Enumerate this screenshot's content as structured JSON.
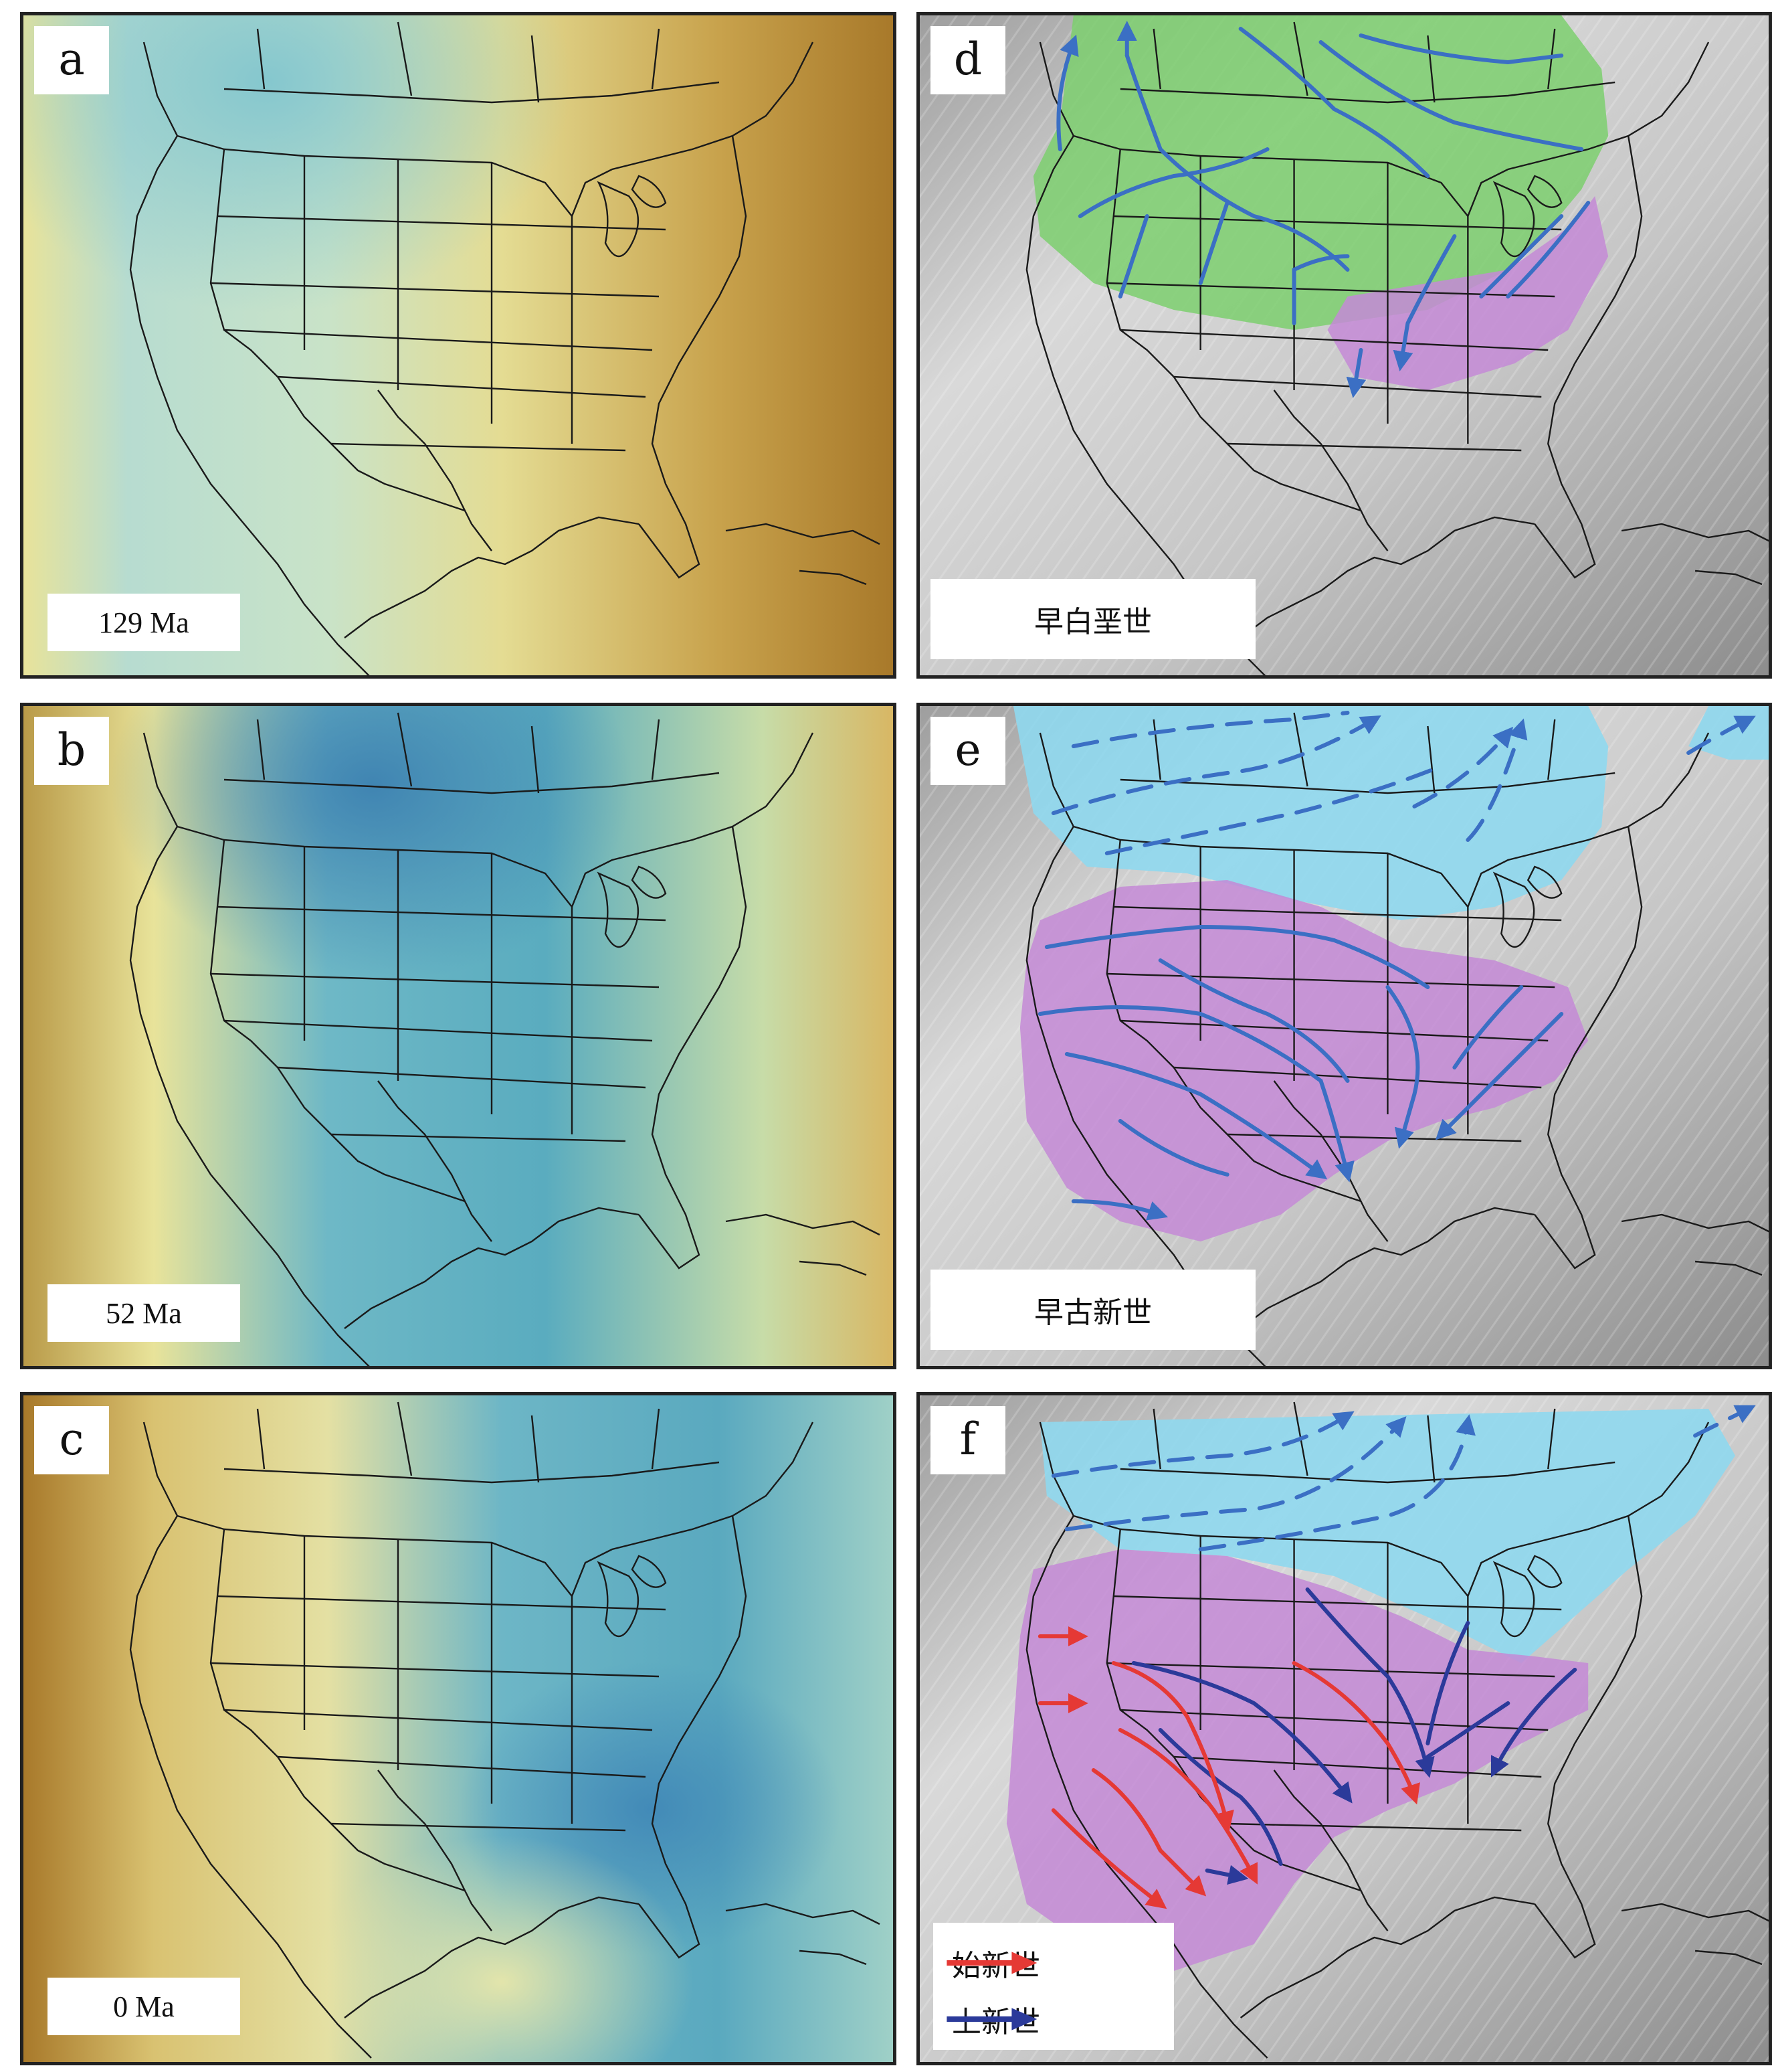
{
  "panels": {
    "a": {
      "letter": "a",
      "age": "129 Ma"
    },
    "b": {
      "letter": "b",
      "age": "52 Ma"
    },
    "c": {
      "letter": "c",
      "age": "0 Ma"
    },
    "d": {
      "letter": "d",
      "epoch": "早白垩世"
    },
    "e": {
      "letter": "e",
      "epoch": "早古新世"
    },
    "f": {
      "letter": "f"
    }
  },
  "legend": {
    "items": [
      {
        "label": "始新世",
        "color": "#e53935"
      },
      {
        "label": "上新世",
        "color": "#2b3a9a"
      }
    ]
  },
  "colors": {
    "dynamic_high": "#a8792a",
    "dynamic_mid": "#e9e49a",
    "dynamic_low": "#3f9bb0",
    "drainage_green": "#7ccf6f",
    "drainage_purple": "#c48ad6",
    "drainage_cyan": "#8fd8ee",
    "river_blue": "#3b6fc4",
    "river_dark_blue": "#2b3a9a",
    "river_red": "#e53935",
    "relief_gray": "#bfbfbf"
  }
}
